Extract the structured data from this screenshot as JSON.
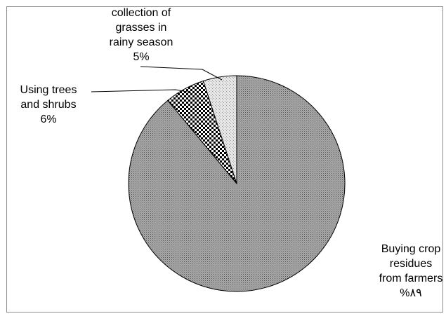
{
  "chart_data": {
    "type": "pie",
    "title": "",
    "slices": [
      {
        "label_lines": [
          "Buying crop",
          "residues",
          "from farmers"
        ],
        "value_text": "%٨٩",
        "value": 89,
        "pattern": "fine-dots"
      },
      {
        "label_lines": [
          "Using  trees",
          "and shrubs"
        ],
        "value_text": "6%",
        "value": 6,
        "pattern": "checker"
      },
      {
        "label_lines": [
          "collection of",
          "grasses in",
          "rainy season"
        ],
        "value_text": "5%",
        "value": 5,
        "pattern": "light-dots"
      }
    ]
  }
}
